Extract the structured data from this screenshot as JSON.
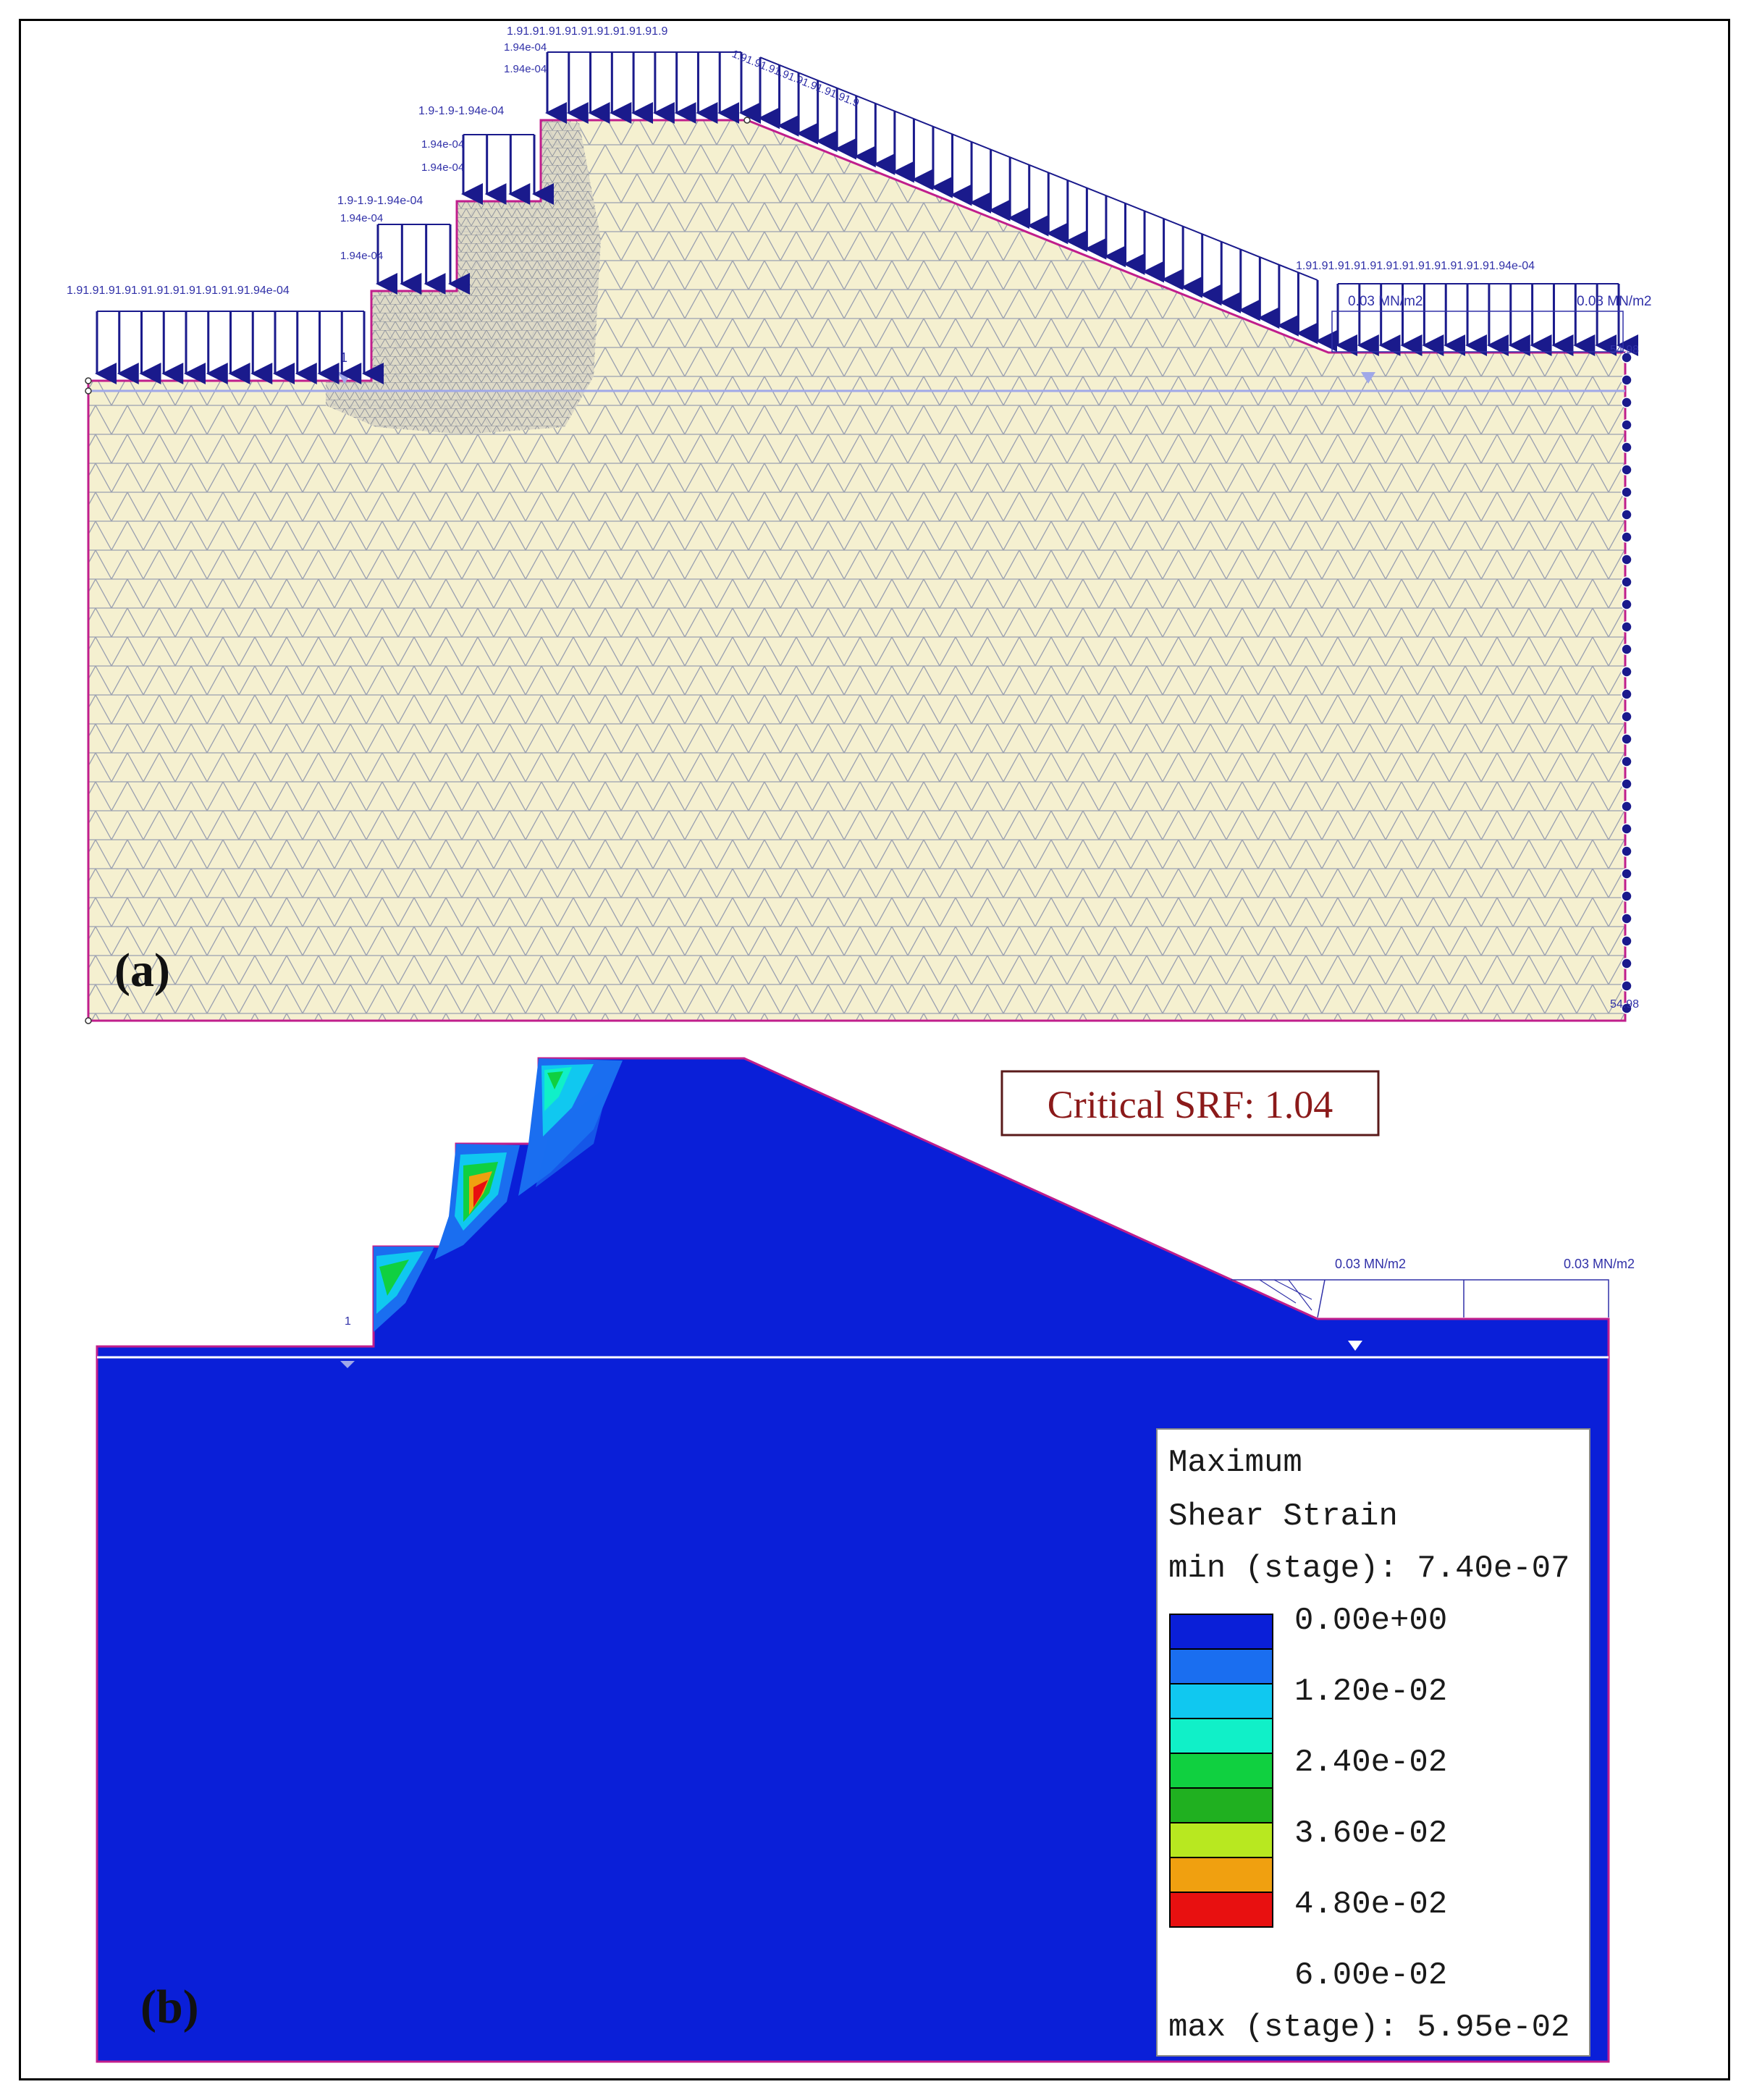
{
  "panel_a": {
    "label": "(a)",
    "load_labels_left": "1.91.91.91.91.91.91.91.91.91.91.91.94e-04",
    "load_labels_step2": "1.9-1.9-1.94e-04",
    "load_labels_step3": "1.9-1.9-1.94e-04",
    "load_labels_top": "1.91.91.91.91.91.91.91.91.91.9",
    "load_labels_step_small": "1.94e-04",
    "load_labels_slope": "1.91.91.91.91.91.91.91.91.9",
    "load_labels_right": "1.91.91.91.91.91.91.91.91.91.91.91.91.94e-04",
    "dist_load_1": "0.03 MN/m2",
    "dist_load_2": "0.03 MN/m2",
    "boundary_value": "54.98",
    "water_marker": "1"
  },
  "panel_b": {
    "label": "(b)",
    "critical_srf": "Critical SRF: 1.04",
    "dist_load_1": "0.03 MN/m2",
    "dist_load_2": "0.03 MN/m2",
    "water_marker": "1",
    "legend": {
      "title_line1": "Maximum",
      "title_line2": "Shear Strain",
      "min_text": "min (stage): 7.40e-07",
      "max_text": "max (stage): 5.95e-02",
      "bins": [
        {
          "color": "#0a1fd8",
          "label": "0.00e+00"
        },
        {
          "color": "#1a6ef0",
          "label": "1.20e-02"
        },
        {
          "color": "#10c8f0",
          "label": "2.40e-02"
        },
        {
          "color": "#10f0c8",
          "label": "3.60e-02"
        },
        {
          "color": "#10d040",
          "label": "4.80e-02"
        },
        {
          "color": "#20b020",
          "label": "6.00e-02"
        },
        {
          "color": "#b8e820",
          "label": ""
        },
        {
          "color": "#f0a010",
          "label": ""
        },
        {
          "color": "#e81010",
          "label": ""
        }
      ]
    }
  },
  "colors": {
    "soil_fill": "#f5f0d0",
    "mesh_line": "#9aa0b0",
    "boundary": "#c01e8c",
    "load_arrow": "#1a1a8c",
    "contour_base": "#0a1fd8"
  }
}
